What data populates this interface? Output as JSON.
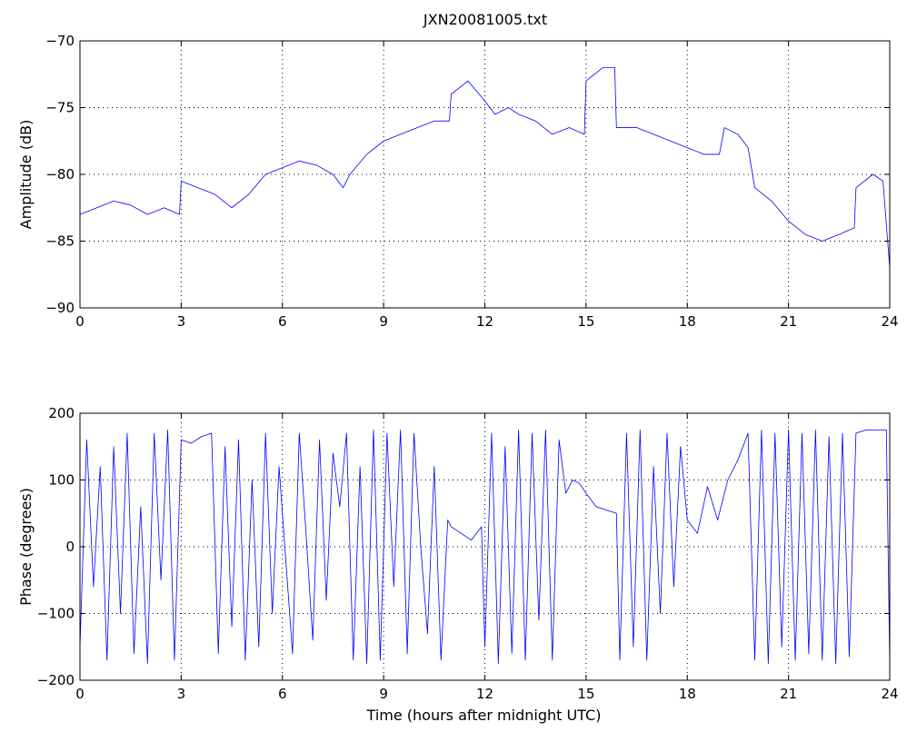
{
  "figure": {
    "title": "JXN20081005.txt"
  },
  "colors": {
    "series": "#0000ff",
    "axes": "#000000",
    "background": "#ffffff"
  },
  "chart_data": [
    {
      "type": "line",
      "title": "JXN20081005.txt",
      "xlabel": "",
      "ylabel": "Amplitude (dB)",
      "xlim": [
        0,
        24
      ],
      "ylim": [
        -90,
        -70
      ],
      "xticks": [
        0,
        3,
        6,
        9,
        12,
        15,
        18,
        21,
        24
      ],
      "xtick_labels": [
        "0",
        "3",
        "6",
        "9",
        "12",
        "15",
        "18",
        "21",
        "24"
      ],
      "yticks": [
        -90,
        -85,
        -80,
        -75,
        -70
      ],
      "ytick_labels": [
        "−90",
        "−85",
        "−80",
        "−75",
        "−70"
      ],
      "grid": true,
      "series": [
        {
          "color": "#0000ff",
          "x": [
            0,
            0.5,
            1.0,
            1.5,
            2.0,
            2.5,
            2.95,
            3.0,
            3.5,
            4.0,
            4.5,
            5.0,
            5.5,
            6.0,
            6.5,
            7.0,
            7.5,
            7.8,
            8.0,
            8.5,
            9.0,
            9.5,
            10.0,
            10.5,
            10.95,
            11.0,
            11.5,
            12.0,
            12.3,
            12.7,
            13.0,
            13.5,
            14.0,
            14.5,
            14.95,
            15.0,
            15.5,
            15.85,
            15.9,
            16.5,
            17.0,
            17.5,
            18.0,
            18.5,
            18.95,
            19.1,
            19.5,
            19.8,
            20.0,
            20.5,
            21.0,
            21.5,
            22.0,
            22.5,
            22.95,
            23.0,
            23.5,
            23.8,
            24.0
          ],
          "y": [
            -83.0,
            -82.5,
            -82.0,
            -82.3,
            -83.0,
            -82.5,
            -83.0,
            -80.5,
            -81.0,
            -81.5,
            -82.5,
            -81.5,
            -80.0,
            -79.5,
            -79.0,
            -79.3,
            -80.0,
            -81.0,
            -80.0,
            -78.5,
            -77.5,
            -77.0,
            -76.5,
            -76.0,
            -76.0,
            -74.0,
            -73.0,
            -74.5,
            -75.5,
            -75.0,
            -75.5,
            -76.0,
            -77.0,
            -76.5,
            -77.0,
            -73.0,
            -72.0,
            -72.0,
            -76.5,
            -76.5,
            -77.0,
            -77.5,
            -78.0,
            -78.5,
            -78.5,
            -76.5,
            -77.0,
            -78.0,
            -81.0,
            -82.0,
            -83.5,
            -84.5,
            -85.0,
            -84.5,
            -84.0,
            -81.0,
            -80.0,
            -80.5,
            -87.0
          ]
        }
      ]
    },
    {
      "type": "line",
      "title": "",
      "xlabel": "Time (hours after midnight UTC)",
      "ylabel": "Phase (degrees)",
      "xlim": [
        0,
        24
      ],
      "ylim": [
        -200,
        200
      ],
      "xticks": [
        0,
        3,
        6,
        9,
        12,
        15,
        18,
        21,
        24
      ],
      "xtick_labels": [
        "0",
        "3",
        "6",
        "9",
        "12",
        "15",
        "18",
        "21",
        "24"
      ],
      "yticks": [
        -200,
        -100,
        0,
        100,
        200
      ],
      "ytick_labels": [
        "−200",
        "−100",
        "0",
        "100",
        "200"
      ],
      "grid": true,
      "series": [
        {
          "color": "#0000ff",
          "x": [
            0,
            0.2,
            0.4,
            0.6,
            0.8,
            1.0,
            1.2,
            1.4,
            1.6,
            1.8,
            2.0,
            2.2,
            2.4,
            2.6,
            2.8,
            3.0,
            3.3,
            3.6,
            3.9,
            4.1,
            4.3,
            4.5,
            4.7,
            4.9,
            5.1,
            5.3,
            5.5,
            5.7,
            5.9,
            6.1,
            6.3,
            6.5,
            6.7,
            6.9,
            7.1,
            7.3,
            7.5,
            7.7,
            7.9,
            8.1,
            8.3,
            8.5,
            8.7,
            8.9,
            9.1,
            9.3,
            9.5,
            9.7,
            9.9,
            10.1,
            10.3,
            10.5,
            10.7,
            10.9,
            11.0,
            11.3,
            11.6,
            11.9,
            12.0,
            12.2,
            12.4,
            12.6,
            12.8,
            13.0,
            13.2,
            13.4,
            13.6,
            13.8,
            14.0,
            14.2,
            14.4,
            14.6,
            14.8,
            15.0,
            15.3,
            15.6,
            15.9,
            16.0,
            16.2,
            16.4,
            16.6,
            16.8,
            17.0,
            17.2,
            17.4,
            17.6,
            17.8,
            18.0,
            18.3,
            18.6,
            18.9,
            19.2,
            19.5,
            19.8,
            20.0,
            20.2,
            20.4,
            20.6,
            20.8,
            21.0,
            21.2,
            21.4,
            21.6,
            21.8,
            22.0,
            22.2,
            22.4,
            22.6,
            22.8,
            23.0,
            23.3,
            23.6,
            23.9,
            24.0
          ],
          "y": [
            -150,
            160,
            -60,
            120,
            -170,
            150,
            -100,
            170,
            -160,
            60,
            -175,
            170,
            -50,
            175,
            -170,
            160,
            155,
            165,
            170,
            -160,
            150,
            -120,
            160,
            -170,
            100,
            -150,
            170,
            -100,
            120,
            -20,
            -160,
            170,
            20,
            -140,
            160,
            -80,
            140,
            60,
            170,
            -170,
            120,
            -175,
            175,
            -170,
            170,
            -60,
            175,
            -160,
            170,
            0,
            -130,
            120,
            -170,
            40,
            30,
            20,
            10,
            30,
            -150,
            170,
            -175,
            150,
            -160,
            175,
            -170,
            170,
            -110,
            175,
            -170,
            160,
            80,
            100,
            95,
            80,
            60,
            55,
            50,
            -170,
            170,
            -150,
            175,
            -170,
            120,
            -100,
            170,
            -60,
            150,
            40,
            20,
            90,
            40,
            100,
            130,
            170,
            -170,
            175,
            -175,
            170,
            -150,
            175,
            -170,
            170,
            -160,
            175,
            -170,
            165,
            -175,
            170,
            -165,
            170,
            175,
            175,
            175,
            -175
          ]
        }
      ]
    }
  ]
}
